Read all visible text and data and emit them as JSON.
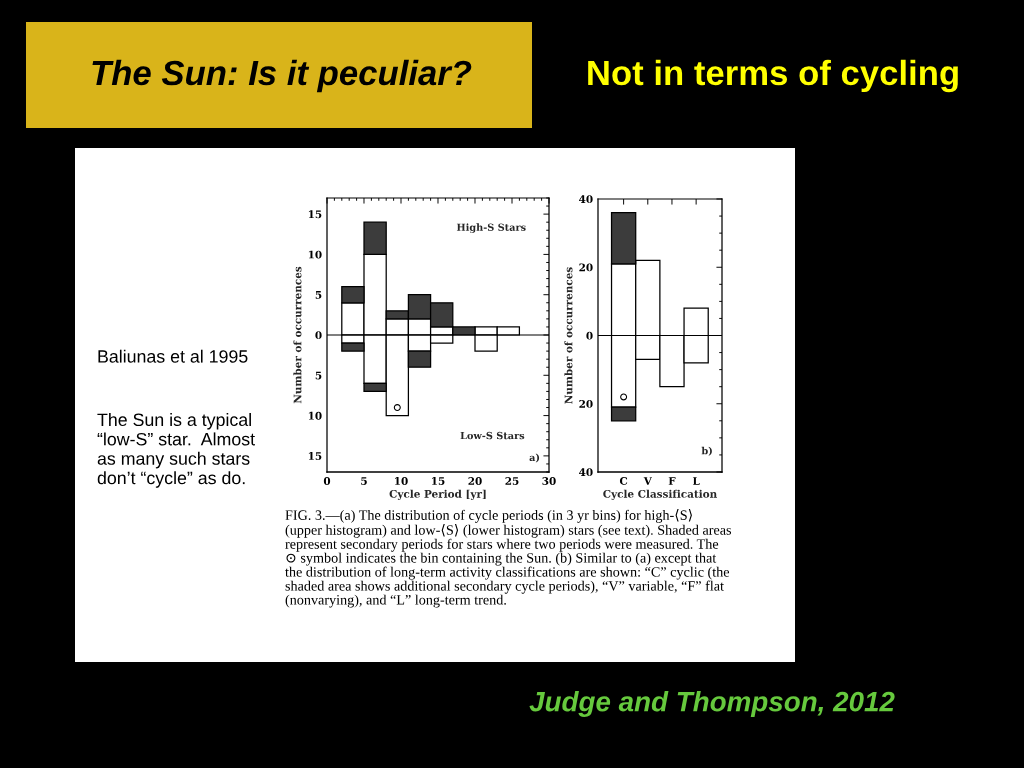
{
  "chart_data": [
    {
      "type": "other",
      "title": "The Sun: Is it peculiar?",
      "subtitle": "Not in terms of cycling",
      "annotations": [
        "Baliunas et al 1995",
        "The Sun is a typical\n“low-S” star.  Almost\nas many such stars\ndon’t “cycle” as do.",
        "FIG. 3.—(a) The distribution of cycle periods (in 3 yr bins) for high-⟨S⟩\n(upper histogram) and low-⟨S⟩ (lower histogram) stars (see text). Shaded areas\nrepresent secondary periods for stars where two periods were measured. The\n⊙ symbol indicates the bin containing the Sun. (b) Similar to (a) except that\nthe distribution of long-term activity classifications are shown: “C” cyclic (the\nshaded area shows additional secondary cycle periods), “V” variable, “F” flat\n(nonvarying), and “L” long-term trend.",
        "Judge and Thompson, 2012"
      ]
    },
    {
      "type": "bar",
      "x": [
        3.5,
        6.5,
        9.5,
        12.5,
        15.5,
        18.5,
        21.5,
        24.5
      ],
      "stacked": true,
      "series": [
        {
          "color": "#ffffff",
          "values": [
            4,
            10,
            2,
            2,
            1,
            0,
            1,
            1
          ]
        },
        {
          "color": "#3c3c3c",
          "values": [
            2,
            4,
            1,
            3,
            3,
            1,
            0,
            0
          ]
        },
        {
          "color": "#ffffff",
          "values": [
            -1,
            -6,
            -10,
            -2,
            -1,
            0,
            -2,
            0
          ]
        },
        {
          "color": "#3c3c3c",
          "values": [
            -1,
            -1,
            0,
            -2,
            0,
            0,
            0,
            0
          ]
        },
        {
          "type": "scatter",
          "color": "#000000",
          "marker": "circle",
          "x": [
            9.5
          ],
          "values": [
            -9
          ]
        }
      ],
      "xlim": [
        0,
        30
      ],
      "xticks": [
        0,
        5,
        10,
        15,
        20,
        25,
        30
      ],
      "ylim": [
        -17,
        17
      ],
      "yticks": [
        {
          "value": -15,
          "label": "15"
        },
        {
          "value": -10,
          "label": "10"
        },
        {
          "value": -5,
          "label": "5"
        },
        0,
        5,
        10,
        15
      ],
      "xlabel": "Cycle Period [yr]",
      "ylabel": "Number of occurrences",
      "ref_lines": [
        {
          "axis": "y",
          "value": 0,
          "color": "#000000"
        }
      ],
      "annotations": [
        "High-S Stars",
        "Low-S Stars",
        "a)"
      ]
    },
    {
      "type": "bar",
      "categories": [
        "C",
        "V",
        "F",
        "L"
      ],
      "stacked": true,
      "series": [
        {
          "color": "#ffffff",
          "values": [
            21,
            22,
            0,
            8
          ]
        },
        {
          "color": "#3c3c3c",
          "values": [
            15,
            0,
            0,
            0
          ]
        },
        {
          "color": "#ffffff",
          "values": [
            -21,
            -7,
            -15,
            -8
          ]
        },
        {
          "color": "#3c3c3c",
          "values": [
            -4,
            0,
            0,
            0
          ]
        },
        {
          "type": "scatter",
          "color": "#000000",
          "marker": "circle",
          "x": [
            "C"
          ],
          "values": [
            -18
          ]
        }
      ],
      "ylim": [
        -40,
        40
      ],
      "yticks": [
        {
          "value": -40,
          "label": "40"
        },
        {
          "value": -20,
          "label": "20"
        },
        0,
        20,
        40
      ],
      "xlabel": "Cycle Classification",
      "ylabel": "Number of occurrences",
      "ref_lines": [
        {
          "axis": "y",
          "value": 0,
          "color": "#000000"
        }
      ],
      "annotations": [
        "b)"
      ]
    }
  ]
}
